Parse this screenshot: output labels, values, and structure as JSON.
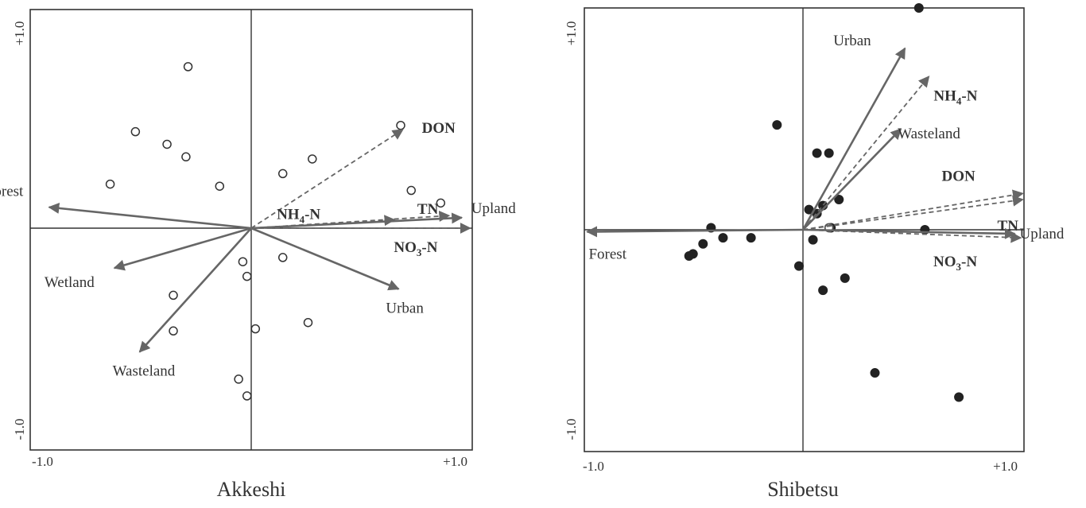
{
  "charts": [
    {
      "title": "Akkeshi",
      "point_style": "open",
      "ticks": {
        "x_min": "-1.0",
        "x_max": "+1.0",
        "y_max": "+1.0",
        "y_min": "-1.0"
      },
      "chart_data": {
        "type": "scatter",
        "title": "Akkeshi",
        "xlim": [
          -1.05,
          1.05
        ],
        "ylim": [
          -1.05,
          1.05
        ],
        "tick_labels": [
          "-1.0",
          "+1.0"
        ],
        "points": [
          {
            "x": -0.3,
            "y": 0.77
          },
          {
            "x": -0.55,
            "y": 0.46
          },
          {
            "x": -0.4,
            "y": 0.4
          },
          {
            "x": -0.31,
            "y": 0.34
          },
          {
            "x": -0.67,
            "y": 0.21
          },
          {
            "x": -0.15,
            "y": 0.2
          },
          {
            "x": 0.15,
            "y": 0.26
          },
          {
            "x": 0.29,
            "y": 0.33
          },
          {
            "x": 0.71,
            "y": 0.49
          },
          {
            "x": 0.76,
            "y": 0.18
          },
          {
            "x": 0.9,
            "y": 0.12
          },
          {
            "x": -0.04,
            "y": -0.16
          },
          {
            "x": -0.02,
            "y": -0.23
          },
          {
            "x": 0.15,
            "y": -0.14
          },
          {
            "x": -0.37,
            "y": -0.32
          },
          {
            "x": -0.37,
            "y": -0.49
          },
          {
            "x": 0.02,
            "y": -0.48
          },
          {
            "x": 0.27,
            "y": -0.45
          },
          {
            "x": -0.06,
            "y": -0.72
          },
          {
            "x": -0.02,
            "y": -0.8
          }
        ],
        "vectors": [
          {
            "label": "Forest",
            "x": -0.96,
            "y": 0.1,
            "style": "solid"
          },
          {
            "label": "Wetland",
            "x": -0.65,
            "y": -0.19,
            "style": "solid"
          },
          {
            "label": "Wasteland",
            "x": -0.53,
            "y": -0.59,
            "style": "solid"
          },
          {
            "label": "Urban",
            "x": 0.7,
            "y": -0.29,
            "style": "solid"
          },
          {
            "label": "Upland",
            "x": 1.0,
            "y": 0.05,
            "style": "solid"
          },
          {
            "label": "DON",
            "x": 0.72,
            "y": 0.47,
            "style": "dashed",
            "bold": true
          },
          {
            "label": "NH4-N",
            "x": 0.68,
            "y": 0.04,
            "style": "dashed",
            "bold": true
          },
          {
            "label": "TN",
            "x": 0.94,
            "y": 0.06,
            "style": "dashed",
            "bold": true
          },
          {
            "label": "NO3-N",
            "x": 1.04,
            "y": 0.0,
            "style": "dashed",
            "bold": true
          }
        ]
      }
    },
    {
      "title": "Shibetsu",
      "point_style": "filled",
      "ticks": {
        "x_min": "-1.0",
        "x_max": "+1.0",
        "y_max": "+1.0",
        "y_min": "-1.0"
      },
      "chart_data": {
        "type": "scatter",
        "title": "Shibetsu",
        "xlim": [
          -1.1,
          1.1
        ],
        "ylim": [
          -1.1,
          1.1
        ],
        "tick_labels": [
          "-1.0",
          "+1.0"
        ],
        "points": [
          {
            "x": 0.58,
            "y": 1.1
          },
          {
            "x": -0.13,
            "y": 0.52
          },
          {
            "x": 0.07,
            "y": 0.38
          },
          {
            "x": 0.13,
            "y": 0.38
          },
          {
            "x": 0.18,
            "y": 0.15
          },
          {
            "x": 0.1,
            "y": 0.12
          },
          {
            "x": 0.03,
            "y": 0.1
          },
          {
            "x": 0.07,
            "y": 0.08
          },
          {
            "x": 0.61,
            "y": 0.0
          },
          {
            "x": 0.14,
            "y": 0.01
          },
          {
            "x": -0.46,
            "y": 0.01
          },
          {
            "x": -0.4,
            "y": -0.04
          },
          {
            "x": -0.26,
            "y": -0.04
          },
          {
            "x": -0.5,
            "y": -0.07
          },
          {
            "x": -0.55,
            "y": -0.12
          },
          {
            "x": -0.57,
            "y": -0.13
          },
          {
            "x": 0.05,
            "y": -0.05
          },
          {
            "x": -0.02,
            "y": -0.18
          },
          {
            "x": 0.21,
            "y": -0.24
          },
          {
            "x": 0.1,
            "y": -0.3
          },
          {
            "x": 0.36,
            "y": -0.71
          },
          {
            "x": 0.78,
            "y": -0.83
          }
        ],
        "open_points": [
          {
            "x": 0.13,
            "y": 0.01
          }
        ],
        "vectors": [
          {
            "label": "Forest",
            "x": -1.08,
            "y": -0.01,
            "style": "solid"
          },
          {
            "label": "Urban",
            "x": 0.51,
            "y": 0.9,
            "style": "solid"
          },
          {
            "label": "Wasteland",
            "x": 0.49,
            "y": 0.5,
            "style": "solid"
          },
          {
            "label": "Upland",
            "x": 1.06,
            "y": -0.02,
            "style": "solid"
          },
          {
            "label": "NH4-N",
            "x": 0.63,
            "y": 0.76,
            "style": "dashed",
            "bold": true
          },
          {
            "label": "DON",
            "x": 1.1,
            "y": 0.18,
            "style": "dashed",
            "bold": true
          },
          {
            "label": "TN",
            "x": 1.1,
            "y": 0.15,
            "style": "dashed",
            "bold": true
          },
          {
            "label": "NO3-N",
            "x": 1.09,
            "y": -0.04,
            "style": "dashed",
            "bold": true
          }
        ]
      }
    }
  ]
}
